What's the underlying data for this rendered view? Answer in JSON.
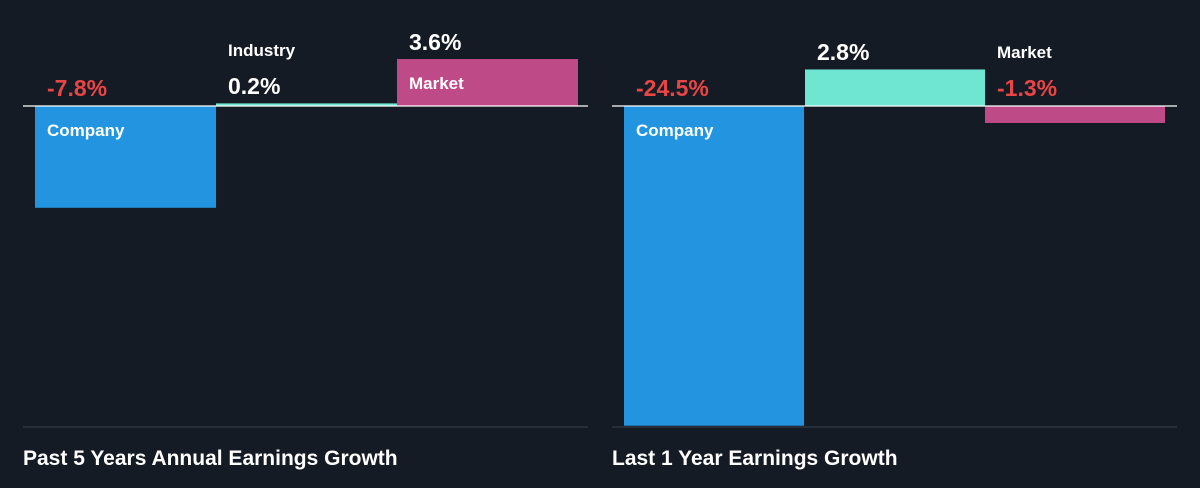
{
  "colors": {
    "background": "#151b24",
    "company": "#2394e0",
    "industry": "#6ee6d2",
    "market": "#be4a88",
    "negative_text": "#e84545",
    "positive_text": "#ffffff",
    "baseline": "#ffffff",
    "bottom_rule": "#3a414b"
  },
  "chart_data": [
    {
      "type": "bar",
      "title": "Past 5 Years Annual Earnings Growth",
      "categories": [
        "Company",
        "Industry",
        "Market"
      ],
      "values": [
        -7.8,
        0.2,
        3.6
      ],
      "value_labels": [
        "-7.8%",
        "0.2%",
        "3.6%"
      ],
      "series_colors": [
        "#2394e0",
        "#6ee6d2",
        "#be4a88"
      ],
      "legend": "none",
      "grid": false
    },
    {
      "type": "bar",
      "title": "Last 1 Year Earnings Growth",
      "categories": [
        "Company",
        "",
        "Market"
      ],
      "values": [
        -24.5,
        2.8,
        -1.3
      ],
      "value_labels": [
        "-24.5%",
        "2.8%",
        "-1.3%"
      ],
      "series_colors": [
        "#2394e0",
        "#6ee6d2",
        "#be4a88"
      ],
      "legend": "none",
      "grid": false
    }
  ]
}
